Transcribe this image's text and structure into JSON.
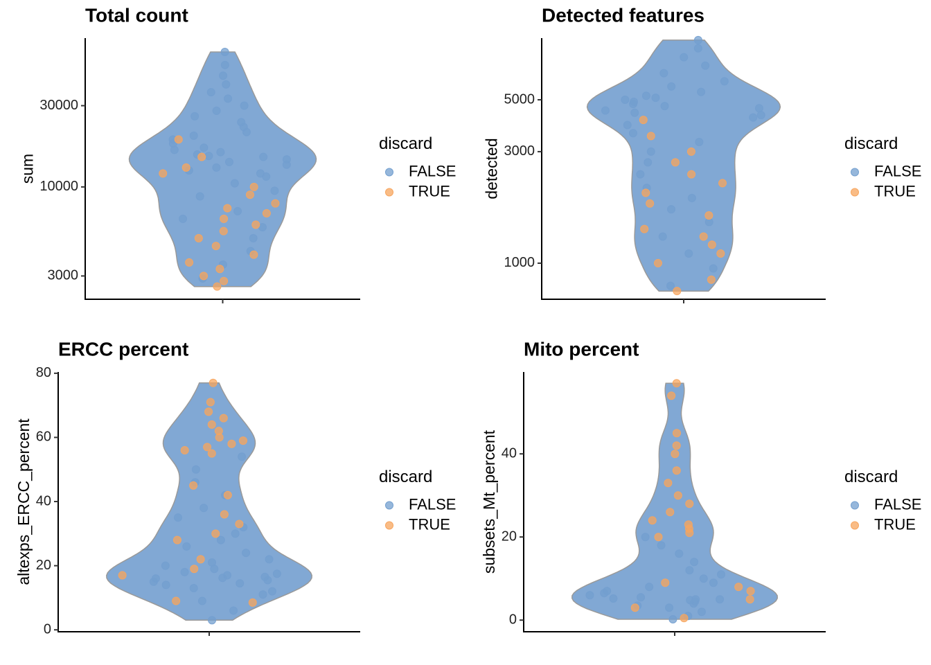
{
  "chart_data": [
    {
      "type": "violin",
      "title": "Total count",
      "ylabel": "sum",
      "yscale": "log",
      "legend": "right",
      "legend_title": "discard",
      "ylim": [
        2190,
        74800
      ],
      "yticks": [
        3000,
        10000,
        30000
      ],
      "series": [
        {
          "name": "FALSE",
          "color": "#739fcf",
          "values": [
            2900,
            3500,
            4200,
            5000,
            5800,
            6500,
            7200,
            8000,
            8800,
            9500,
            10500,
            11500,
            12000,
            12500,
            13000,
            13500,
            14000,
            14500,
            15000,
            15200,
            15500,
            16000,
            16500,
            17000,
            18000,
            19000,
            20000,
            21000,
            22500,
            24000,
            26000,
            28000,
            30000,
            33000,
            36000,
            40000,
            45000,
            52000,
            62000
          ]
        },
        {
          "name": "TRUE",
          "color": "#f7a55e",
          "values": [
            2600,
            2800,
            3000,
            3300,
            3600,
            4000,
            4500,
            5000,
            5500,
            6000,
            6500,
            7000,
            7500,
            8000,
            9000,
            10000,
            12000,
            13000,
            15000,
            19000
          ]
        }
      ]
    },
    {
      "type": "violin",
      "title": "Detected features",
      "ylabel": "detected",
      "yscale": "log",
      "legend": "right",
      "legend_title": "discard",
      "ylim": [
        701,
        9180
      ],
      "yticks": [
        1000,
        3000,
        5000
      ],
      "series": [
        {
          "name": "FALSE",
          "color": "#739fcf",
          "values": [
            800,
            950,
            1100,
            1300,
            1500,
            1700,
            1900,
            2100,
            2400,
            2700,
            3000,
            3300,
            3600,
            3900,
            4200,
            4300,
            4400,
            4500,
            4600,
            4700,
            4800,
            4900,
            5000,
            5100,
            5200,
            5400,
            5700,
            6000,
            6500,
            7000,
            7600,
            8300,
            9000
          ]
        },
        {
          "name": "TRUE",
          "color": "#f7a55e",
          "values": [
            760,
            850,
            1000,
            1100,
            1200,
            1300,
            1400,
            1600,
            1800,
            2000,
            2200,
            2400,
            2700,
            3000,
            3500,
            4100
          ]
        }
      ]
    },
    {
      "type": "violin",
      "title": "ERCC percent",
      "ylabel": "altexps_ERCC_percent",
      "yscale": "linear",
      "legend": "right",
      "legend_title": "discard",
      "ylim": [
        -0.6,
        80.4
      ],
      "yticks": [
        0,
        20,
        40,
        60,
        80
      ],
      "series": [
        {
          "name": "FALSE",
          "color": "#739fcf",
          "values": [
            3,
            6,
            9,
            11,
            12,
            13,
            14,
            14.5,
            15,
            15.5,
            16,
            16.2,
            16.5,
            17,
            17.5,
            18,
            19,
            20,
            21,
            22,
            24,
            26,
            28,
            30,
            32,
            35,
            38,
            42,
            46,
            50,
            54
          ]
        },
        {
          "name": "TRUE",
          "color": "#f7a55e",
          "values": [
            55,
            56,
            57,
            58,
            59,
            60,
            62,
            64,
            66,
            68,
            71,
            77,
            9,
            17,
            19,
            22,
            28,
            30,
            33,
            36,
            42,
            45,
            8.5
          ]
        }
      ]
    },
    {
      "type": "violin",
      "title": "Mito percent",
      "ylabel": "subsets_Mt_percent",
      "yscale": "linear",
      "legend": "right",
      "legend_title": "discard",
      "ylim": [
        -2.8,
        59.7
      ],
      "yticks": [
        0,
        20,
        40
      ],
      "series": [
        {
          "name": "FALSE",
          "color": "#739fcf",
          "values": [
            0.2,
            1,
            2,
            3,
            3.5,
            4,
            4.5,
            4.8,
            5,
            5,
            5.2,
            5.5,
            6,
            6.5,
            7,
            8,
            9,
            10,
            11,
            12,
            14,
            16,
            18,
            20
          ]
        },
        {
          "name": "TRUE",
          "color": "#f7a55e",
          "values": [
            20,
            21,
            22,
            23,
            24,
            26,
            28,
            30,
            33,
            36,
            40,
            42,
            45,
            54,
            57,
            0.5,
            3,
            5,
            7,
            8,
            9
          ]
        }
      ]
    }
  ]
}
